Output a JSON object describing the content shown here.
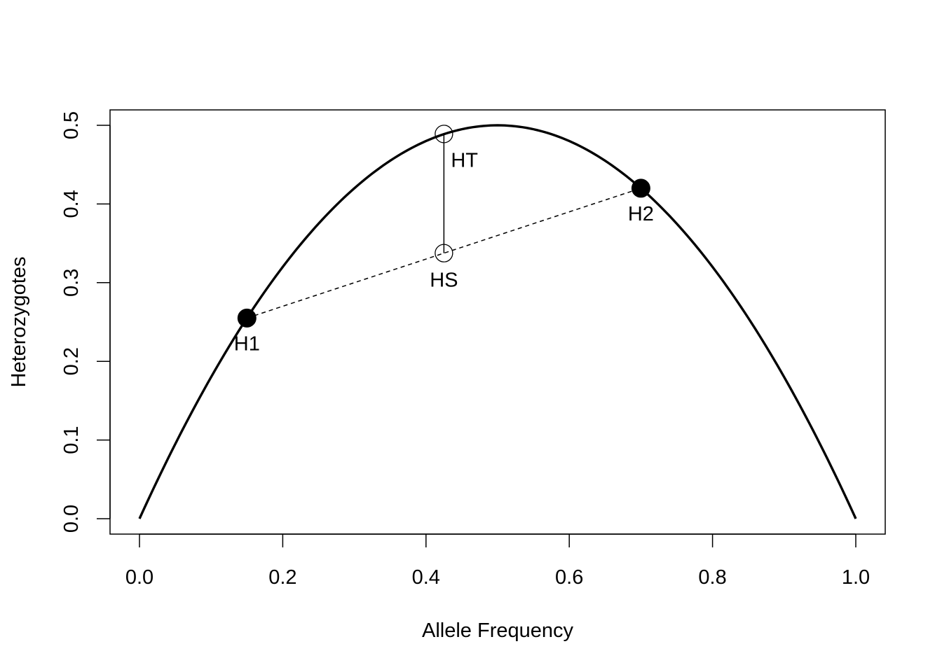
{
  "chart_data": {
    "type": "line",
    "title": "",
    "xlabel": "Allele Frequency",
    "ylabel": "Heterozygotes",
    "xlim": [
      0,
      1
    ],
    "ylim": [
      0,
      0.5
    ],
    "x_ticks": [
      "0.0",
      "0.2",
      "0.4",
      "0.6",
      "0.8",
      "1.0"
    ],
    "y_ticks": [
      "0.0",
      "0.1",
      "0.2",
      "0.3",
      "0.4",
      "0.5"
    ],
    "curve": {
      "formula": "2p(1-p)",
      "x_start": 0,
      "x_end": 1,
      "style": "solid",
      "line_weight": "thick"
    },
    "points": [
      {
        "label": "H1",
        "x": 0.15,
        "y": 0.255,
        "marker": "filled-circle"
      },
      {
        "label": "H2",
        "x": 0.7,
        "y": 0.42,
        "marker": "filled-circle"
      },
      {
        "label": "HT",
        "x": 0.425,
        "y": 0.489,
        "marker": "open-circle"
      },
      {
        "label": "HS",
        "x": 0.425,
        "y": 0.3375,
        "marker": "open-circle"
      }
    ],
    "segments": [
      {
        "from": "H1",
        "to": "H2",
        "style": "dashed"
      },
      {
        "from": "HS",
        "to": "HT",
        "style": "solid"
      }
    ],
    "grid": false,
    "legend": "none"
  }
}
